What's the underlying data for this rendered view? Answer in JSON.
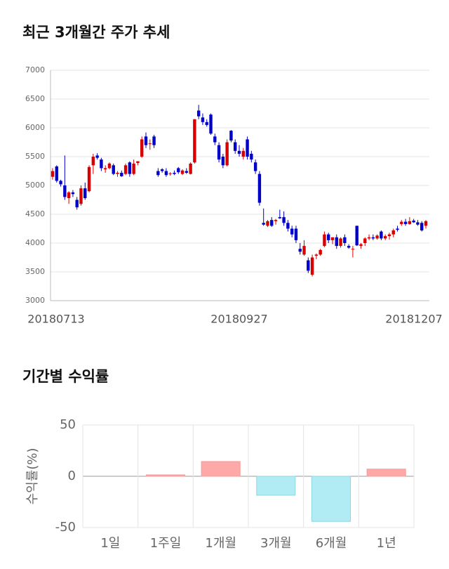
{
  "chart_data": [
    {
      "type": "candlestick",
      "title": "최근 3개월간 주가 추세",
      "categories": [
        "20180713",
        null,
        null,
        null,
        null,
        null,
        null,
        null,
        null,
        null,
        null,
        null,
        null,
        null,
        null,
        null,
        null,
        null,
        null,
        null,
        null,
        null,
        null,
        null,
        null,
        null,
        null,
        null,
        null,
        null,
        null,
        null,
        null,
        null,
        null,
        null,
        null,
        null,
        null,
        null,
        null,
        null,
        null,
        null,
        null,
        null,
        "20180927",
        null,
        null,
        null,
        null,
        null,
        null,
        null,
        null,
        null,
        null,
        null,
        null,
        null,
        null,
        null,
        null,
        null,
        null,
        null,
        null,
        null,
        null,
        null,
        null,
        null,
        null,
        null,
        null,
        null,
        null,
        null,
        null,
        null,
        null,
        null,
        null,
        null,
        null,
        null,
        null,
        null,
        null,
        null,
        null,
        null,
        "20181207"
      ],
      "open": [
        5150,
        5330,
        5080,
        5000,
        4780,
        4880,
        4750,
        4680,
        4950,
        4900,
        5350,
        5520,
        5450,
        5280,
        5300,
        5350,
        5200,
        5220,
        5200,
        5400,
        5200,
        5390,
        5500,
        5850,
        5720,
        5850,
        5250,
        5280,
        5250,
        5200,
        5220,
        5300,
        5200,
        5250,
        5200,
        5400,
        6300,
        6180,
        6100,
        6230,
        5850,
        5700,
        5500,
        5350,
        5950,
        5750,
        5600,
        5500,
        5800,
        5550,
        5400,
        5200,
        4350,
        4300,
        4400,
        4380,
        4450,
        4450,
        4350,
        4250,
        4250,
        3900,
        3800,
        3700,
        3450,
        3780,
        3800,
        3950,
        4150,
        4050,
        4100,
        3950,
        4100,
        3950,
        3900,
        4300,
        3950,
        4000,
        4080,
        4100,
        4080,
        4200,
        4080,
        4120,
        4150,
        4250,
        4330,
        4370,
        4330,
        4390,
        4360,
        4350,
        4300
      ],
      "high": [
        5300,
        5350,
        5100,
        5520,
        4900,
        4920,
        4800,
        5000,
        5050,
        5350,
        5550,
        5560,
        5480,
        5350,
        5400,
        5380,
        5250,
        5260,
        5380,
        5420,
        5450,
        5420,
        5850,
        5920,
        5800,
        5880,
        5300,
        5300,
        5300,
        5230,
        5260,
        5320,
        5280,
        5300,
        5400,
        6150,
        6400,
        6250,
        6150,
        6250,
        5900,
        5750,
        5550,
        5800,
        5960,
        5800,
        5700,
        5650,
        5850,
        5600,
        5450,
        5250,
        4600,
        4400,
        4450,
        4420,
        4580,
        4550,
        4400,
        4300,
        4300,
        4000,
        4050,
        3750,
        3800,
        3820,
        3900,
        4200,
        4180,
        4100,
        4150,
        4100,
        4150,
        3980,
        3950,
        4300,
        4000,
        4100,
        4150,
        4150,
        4150,
        4220,
        4150,
        4180,
        4250,
        4300,
        4400,
        4420,
        4450,
        4420,
        4400,
        4380,
        4400
      ],
      "low": [
        5100,
        5050,
        4980,
        4750,
        4680,
        4800,
        4580,
        4650,
        4750,
        4880,
        5200,
        5450,
        5250,
        5220,
        5280,
        5180,
        5150,
        5150,
        5180,
        5150,
        5180,
        5350,
        5480,
        5650,
        5620,
        5650,
        5150,
        5220,
        5150,
        5170,
        5180,
        5200,
        5180,
        5200,
        5190,
        5380,
        6150,
        6050,
        6020,
        5880,
        5700,
        5400,
        5300,
        5330,
        5750,
        5550,
        5500,
        5450,
        5450,
        5400,
        5200,
        4650,
        4300,
        4280,
        4280,
        4320,
        4420,
        4300,
        4200,
        4100,
        4000,
        3800,
        3780,
        3480,
        3420,
        3720,
        3780,
        3930,
        4000,
        3980,
        3900,
        3920,
        3950,
        3900,
        3750,
        3950,
        3900,
        3950,
        4050,
        4050,
        4060,
        4050,
        4050,
        4060,
        4100,
        4200,
        4300,
        4300,
        4320,
        4350,
        4300,
        4200,
        4250
      ],
      "close": [
        5250,
        5080,
        5020,
        4800,
        4880,
        4850,
        4620,
        4950,
        4780,
        5320,
        5500,
        5480,
        5300,
        5300,
        5380,
        5200,
        5220,
        5160,
        5350,
        5200,
        5380,
        5420,
        5800,
        5700,
        5730,
        5700,
        5180,
        5250,
        5180,
        5210,
        5200,
        5230,
        5260,
        5220,
        5380,
        6150,
        6200,
        6100,
        6050,
        5900,
        5750,
        5450,
        5350,
        5750,
        5780,
        5600,
        5550,
        5600,
        5500,
        5450,
        5250,
        4700,
        4320,
        4380,
        4300,
        4400,
        4430,
        4350,
        4250,
        4150,
        4050,
        3850,
        3950,
        3520,
        3750,
        3800,
        3880,
        4150,
        4050,
        4100,
        3950,
        4080,
        4000,
        3920,
        3900,
        3960,
        3980,
        4080,
        4100,
        4080,
        4130,
        4080,
        4120,
        4150,
        4220,
        4230,
        4370,
        4330,
        4380,
        4360,
        4320,
        4220,
        4380
      ],
      "ylim": [
        3000,
        7000
      ],
      "yticks": [
        3000,
        3500,
        4000,
        4500,
        5000,
        5500,
        6000,
        6500,
        7000
      ],
      "up_color": "#d70000",
      "down_color": "#0000c8",
      "grid": true
    },
    {
      "type": "bar",
      "title": "기간별 수익률",
      "ylabel": "수익률(%)",
      "categories": [
        "1일",
        "1주일",
        "1개월",
        "3개월",
        "6개월",
        "1년"
      ],
      "values": [
        0,
        1.4,
        14.4,
        -18.5,
        -44,
        7
      ],
      "ylim": [
        -50,
        50
      ],
      "yticks": [
        -50,
        0,
        50
      ],
      "positive_color": "#ffa8a8",
      "negative_color": "#b1ebf3",
      "grid": true
    }
  ]
}
